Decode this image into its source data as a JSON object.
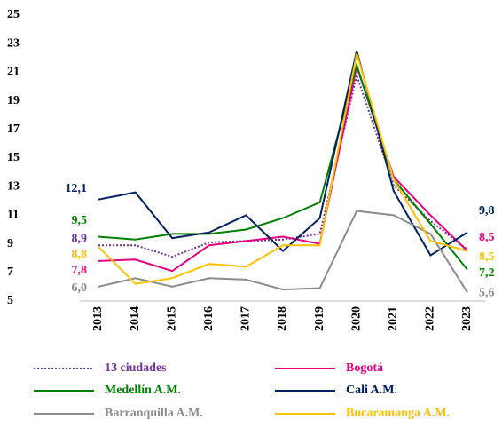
{
  "chart_data": {
    "type": "line",
    "categories": [
      "2013",
      "2014",
      "2015",
      "2016",
      "2017",
      "2018",
      "2019",
      "2020",
      "2021",
      "2022",
      "2023"
    ],
    "ylim": [
      5,
      25
    ],
    "yticks": [
      5,
      7,
      9,
      11,
      13,
      15,
      17,
      19,
      21,
      23,
      25
    ],
    "grid": false,
    "series": [
      {
        "name": "13 ciudades",
        "color": "#7030a0",
        "dash": "dotted",
        "values": [
          8.9,
          8.9,
          8.1,
          9.1,
          9.2,
          9.3,
          9.7,
          20.8,
          13.1,
          10.6,
          8.6
        ],
        "value_labels": [
          "8,9",
          null,
          null,
          null,
          null,
          null,
          null,
          null,
          null,
          null,
          null
        ]
      },
      {
        "name": "Bogotá",
        "color": "#e6007e",
        "values": [
          7.8,
          7.9,
          7.1,
          8.9,
          9.2,
          9.5,
          9.0,
          21.4,
          13.7,
          11.0,
          8.5
        ],
        "value_labels": [
          "7,8",
          null,
          null,
          null,
          null,
          null,
          null,
          null,
          null,
          null,
          "8,5"
        ]
      },
      {
        "name": "Medellín A.M.",
        "color": "#008000",
        "values": [
          9.5,
          9.3,
          9.7,
          9.7,
          10.0,
          10.8,
          11.9,
          21.5,
          13.5,
          10.4,
          7.2
        ],
        "value_labels": [
          "9,5",
          null,
          null,
          null,
          null,
          null,
          null,
          null,
          null,
          null,
          "7,2"
        ]
      },
      {
        "name": "Cali A.M.",
        "color": "#002060",
        "values": [
          12.1,
          12.6,
          9.4,
          9.8,
          11.0,
          8.5,
          10.8,
          22.5,
          12.7,
          8.2,
          9.8
        ],
        "value_labels": [
          "12,1",
          null,
          null,
          null,
          null,
          null,
          null,
          null,
          null,
          null,
          "9,8"
        ]
      },
      {
        "name": "Barranquilla A.M.",
        "color": "#8c8c8c",
        "values": [
          6.0,
          6.6,
          6.0,
          6.6,
          6.5,
          5.8,
          5.9,
          11.3,
          11.0,
          9.7,
          5.6
        ],
        "value_labels": [
          "6,0",
          null,
          null,
          null,
          null,
          null,
          null,
          null,
          null,
          null,
          "5,6"
        ]
      },
      {
        "name": "Bucaramanga A.M.",
        "color": "#ffc000",
        "values": [
          8.8,
          6.2,
          6.6,
          7.6,
          7.4,
          8.9,
          8.9,
          22.3,
          13.5,
          9.2,
          8.5
        ],
        "value_labels": [
          "8,8",
          null,
          null,
          null,
          null,
          null,
          null,
          null,
          null,
          null,
          "8,5"
        ]
      }
    ]
  }
}
